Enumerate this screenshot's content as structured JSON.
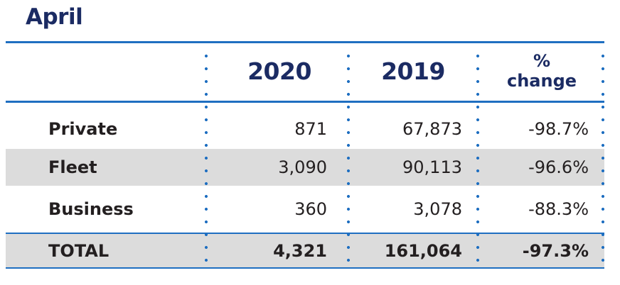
{
  "chart_data": {
    "type": "table",
    "title": "April",
    "columns": [
      "",
      "2020",
      "2019",
      "%",
      "change"
    ],
    "column_headers": {
      "c2020": "2020",
      "c2019": "2019",
      "pct_line1": "%",
      "pct_line2": "change"
    },
    "rows": [
      {
        "label": "Private",
        "y2020": "871",
        "y2019": "67,873",
        "pct": "-98.7%"
      },
      {
        "label": "Fleet",
        "y2020": "3,090",
        "y2019": "90,113",
        "pct": "-96.6%"
      },
      {
        "label": "Business",
        "y2020": "360",
        "y2019": "3,078",
        "pct": "-88.3%"
      },
      {
        "label": "TOTAL",
        "y2020": "4,321",
        "y2019": "161,064",
        "pct": "-97.3%"
      }
    ]
  },
  "colors": {
    "title": "#1b2b63",
    "accent": "#1f6fc1",
    "shade": "#dcdcdc",
    "text": "#231f20"
  }
}
